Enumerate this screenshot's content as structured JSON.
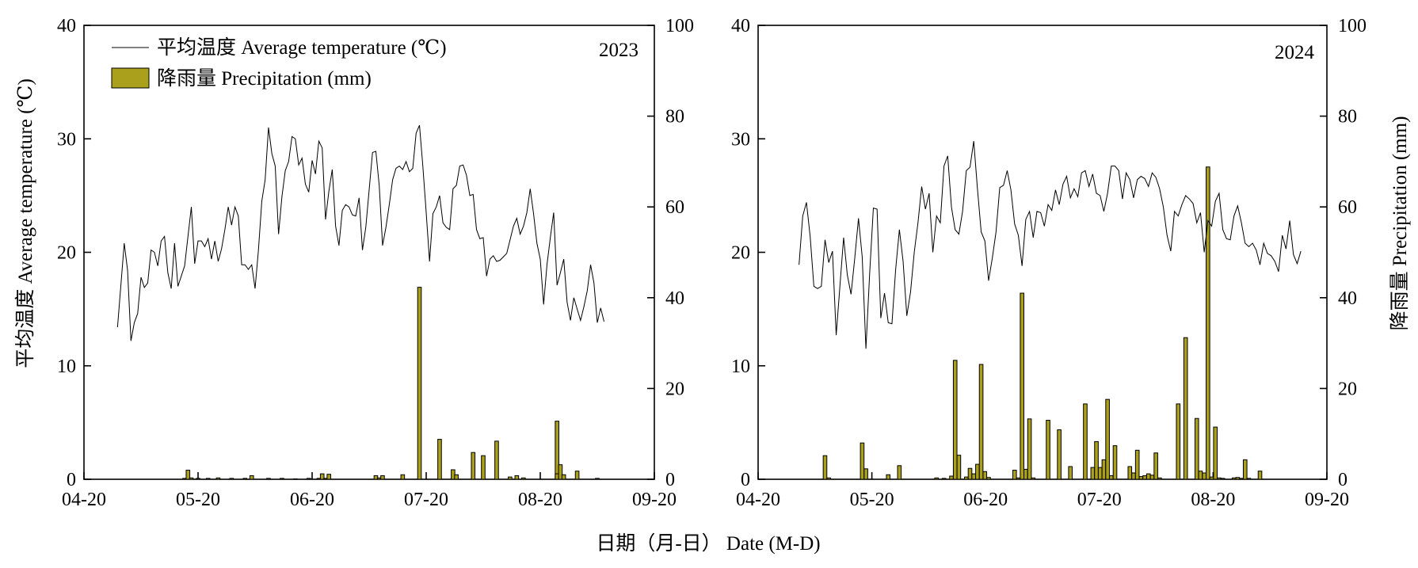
{
  "x_title": "日期（月-日） Date (M-D)",
  "y_left_title": "平均温度 Average temperature (℃)",
  "y_right_title": "降雨量 Precipitation (mm)",
  "legend": {
    "temperature": "平均温度 Average temperature (℃)",
    "precipitation": "降雨量 Precipitation  (mm)"
  },
  "colors": {
    "bar_fill": "#aaa01c",
    "line": "#000000"
  },
  "chart_data": [
    {
      "type": "line+bar",
      "annotation": "2023",
      "x_ticks": [
        "04-20",
        "05-20",
        "06-20",
        "07-20",
        "08-20",
        "09-20"
      ],
      "x_range_days": [
        0,
        170
      ],
      "y_left_ticks": [
        "0",
        "10",
        "20",
        "30",
        "40"
      ],
      "y_left_range": [
        0,
        40
      ],
      "y_right_ticks": [
        "0",
        "20",
        "40",
        "60",
        "80",
        "100"
      ],
      "y_right_range": [
        0,
        100
      ],
      "legend_position": "top-left",
      "temperature": {
        "day": [
          10,
          12,
          13,
          14,
          15,
          16,
          17,
          18,
          19,
          20,
          21,
          22,
          23,
          24,
          25,
          26,
          27,
          28,
          29,
          30,
          31,
          32,
          33,
          34,
          35,
          36,
          37,
          38,
          39,
          40,
          41,
          42,
          43,
          44,
          45,
          46,
          47,
          48,
          49,
          50,
          51,
          52,
          53,
          54,
          55,
          56,
          57,
          58,
          59,
          60,
          61,
          62,
          63,
          64,
          65,
          66,
          67,
          68,
          69,
          70,
          71,
          72,
          73,
          74,
          75,
          76,
          77,
          78,
          79,
          80,
          81,
          82,
          83,
          84,
          85,
          86,
          87,
          88,
          89,
          90,
          91,
          92,
          93,
          94,
          95,
          96,
          97,
          98,
          99,
          100,
          101,
          102,
          103,
          104,
          105,
          106,
          107,
          108,
          109,
          110,
          111,
          112,
          113,
          114,
          115,
          116,
          117,
          118,
          119,
          120,
          121,
          122,
          123,
          124,
          125,
          126,
          127,
          128,
          129,
          130,
          131,
          132,
          133,
          134,
          135,
          136,
          137,
          138,
          139,
          140,
          141,
          142,
          143,
          144,
          145,
          146,
          147,
          148,
          149,
          150,
          151,
          152,
          153,
          154,
          155,
          156,
          157,
          158
        ],
        "value": [
          13.4,
          20.8,
          18.4,
          12.2,
          13.8,
          14.6,
          17.8,
          16.9,
          17.3,
          20.2,
          20.0,
          18.8,
          21.0,
          21.4,
          18.2,
          16.8,
          20.8,
          17.0,
          17.9,
          18.8,
          21.4,
          24.0,
          19.0,
          21.0,
          21.0,
          20.5,
          21.2,
          19.4,
          21.0,
          19.2,
          20.3,
          22.0,
          24.0,
          22.4,
          24.0,
          23.2,
          18.9,
          18.9,
          18.5,
          18.9,
          16.8,
          20.2,
          24.5,
          26.4,
          31.0,
          28.7,
          27.6,
          21.6,
          24.9,
          27.2,
          28.0,
          30.2,
          30.0,
          27.7,
          28.3,
          26.0,
          25.3,
          28.1,
          26.9,
          29.8,
          29.2,
          22.9,
          25.4,
          27.3,
          22.3,
          20.6,
          23.7,
          24.2,
          24.0,
          23.3,
          23.2,
          24.8,
          20.2,
          22.2,
          25.5,
          28.8,
          28.9,
          25.9,
          20.6,
          22.2,
          24.2,
          26.4,
          27.4,
          27.6,
          27.3,
          28.0,
          27.1,
          27.4,
          30.5,
          31.2,
          27.6,
          23.5,
          19.2,
          23.4,
          24.0,
          25.0,
          22.6,
          22.2,
          22.0,
          25.6,
          25.9,
          27.6,
          27.7,
          26.8,
          25.0,
          25.1,
          22.0,
          21.2,
          21.3,
          17.9,
          19.4,
          19.7,
          19.2,
          19.3,
          19.6,
          19.9,
          21.1,
          22.3,
          23.0,
          21.6,
          22.3,
          23.5,
          25.6,
          23.4,
          20.8,
          19.4,
          15.4,
          18.9,
          21.3,
          23.5,
          17.1,
          18.2,
          19.4,
          15.6,
          14.0,
          16.0,
          15.0,
          14.0,
          15.2,
          16.6,
          18.9,
          17.3,
          13.8,
          15.1,
          13.9
        ]
      },
      "precipitation": {
        "day": [
          30,
          31,
          32,
          34,
          37,
          40,
          44,
          48,
          50,
          55,
          59,
          63,
          67,
          70,
          71,
          72,
          73,
          87,
          88,
          89,
          95,
          100,
          106,
          110,
          111,
          116,
          119,
          123,
          127,
          129,
          131,
          141,
          141,
          142,
          142,
          143,
          147,
          153
        ],
        "value": [
          0.2,
          2.0,
          0.3,
          0.2,
          0.2,
          0.3,
          0.2,
          0.2,
          0.8,
          0.2,
          0.2,
          0.1,
          0.2,
          0.2,
          1.2,
          0.2,
          1.1,
          0.8,
          0.3,
          0.8,
          1.0,
          42.3,
          8.8,
          2.1,
          1.0,
          5.9,
          5.2,
          8.4,
          0.5,
          0.8,
          0.3,
          12.8,
          1.2,
          0.5,
          3.2,
          1.0,
          1.8,
          0.2
        ]
      }
    },
    {
      "type": "line+bar",
      "annotation": "2024",
      "x_ticks": [
        "04-20",
        "05-20",
        "06-20",
        "07-20",
        "08-20",
        "09-20"
      ],
      "x_range_days": [
        0,
        153
      ],
      "y_left_ticks": [
        "0",
        "10",
        "20",
        "30",
        "40"
      ],
      "y_left_range": [
        0,
        40
      ],
      "y_right_ticks": [
        "0",
        "20",
        "40",
        "60",
        "80",
        "100"
      ],
      "y_right_range": [
        0,
        100
      ],
      "temperature": {
        "day": [
          11,
          12,
          13,
          14,
          15,
          16,
          17,
          18,
          19,
          20,
          21,
          22,
          23,
          24,
          25,
          26,
          27,
          28,
          29,
          30,
          31,
          32,
          33,
          34,
          35,
          36,
          37,
          38,
          39,
          40,
          41,
          42,
          43,
          44,
          45,
          46,
          47,
          48,
          49,
          50,
          51,
          52,
          53,
          54,
          55,
          56,
          57,
          58,
          59,
          60,
          61,
          62,
          63,
          64,
          65,
          66,
          67,
          68,
          69,
          70,
          71,
          72,
          73,
          74,
          75,
          76,
          77,
          78,
          79,
          80,
          81,
          82,
          83,
          84,
          85,
          86,
          87,
          88,
          89,
          90,
          91,
          92,
          93,
          94,
          95,
          96,
          97,
          98,
          99,
          100,
          101,
          102,
          103,
          104,
          105,
          106,
          107,
          108,
          109,
          110,
          111,
          112,
          113,
          114,
          115,
          116,
          117,
          118,
          119,
          120,
          121,
          122,
          123,
          124,
          125,
          126,
          127,
          128,
          129,
          130,
          131,
          132,
          133,
          134,
          135,
          136,
          137,
          138,
          139,
          140,
          141,
          142,
          143,
          144,
          145,
          146,
          147,
          148
        ],
        "value": [
          18.9,
          23.2,
          24.4,
          21.4,
          17.0,
          16.8,
          17.0,
          21.1,
          19.1,
          20.1,
          12.7,
          17.0,
          21.3,
          18.0,
          16.3,
          19.5,
          23.0,
          19.6,
          11.5,
          18.1,
          23.9,
          23.8,
          14.2,
          16.4,
          13.8,
          13.7,
          18.5,
          22.0,
          19.2,
          14.4,
          16.5,
          20.0,
          22.6,
          25.8,
          23.8,
          25.2,
          20.0,
          23.2,
          22.6,
          27.6,
          28.5,
          24.0,
          22.0,
          21.6,
          23.6,
          27.2,
          27.5,
          29.8,
          25.6,
          21.8,
          21.0,
          17.5,
          19.5,
          21.8,
          25.7,
          25.9,
          27.2,
          25.5,
          22.5,
          21.5,
          18.8,
          22.9,
          23.6,
          21.3,
          23.6,
          23.5,
          22.3,
          24.2,
          23.7,
          25.5,
          24.2,
          26.0,
          26.7,
          24.8,
          25.6,
          24.9,
          27.0,
          27.2,
          25.8,
          26.9,
          25.2,
          25.0,
          23.6,
          25.2,
          27.6,
          27.6,
          27.2,
          24.7,
          27.0,
          26.4,
          24.8,
          26.4,
          26.7,
          26.5,
          25.8,
          27.0,
          26.6,
          25.6,
          24.0,
          21.5,
          20.1,
          23.6,
          23.2,
          24.2,
          25.0,
          24.7,
          24.3,
          22.6,
          23.5,
          20.0,
          22.8,
          22.3,
          24.5,
          25.2,
          22.0,
          21.2,
          21.1,
          23.2,
          24.1,
          22.6,
          20.8,
          20.5,
          20.8,
          20.2,
          18.9,
          20.8,
          19.9,
          19.7,
          19.2,
          18.3,
          21.5,
          20.3,
          22.8,
          19.8,
          19.0,
          20.1
        ]
      },
      "precipitation": {
        "day": [
          18,
          19,
          28,
          29,
          35,
          38,
          48,
          50,
          52,
          53,
          54,
          56,
          57,
          58,
          59,
          60,
          61,
          62,
          69,
          70,
          71,
          72,
          73,
          74,
          78,
          81,
          84,
          88,
          90,
          91,
          92,
          93,
          94,
          95,
          96,
          100,
          101,
          102,
          103,
          104,
          105,
          106,
          107,
          108,
          113,
          115,
          118,
          119,
          120,
          121,
          122,
          123,
          124,
          125,
          128,
          129,
          130,
          131,
          132,
          135
        ],
        "value": [
          5.2,
          0.3,
          8.0,
          2.3,
          1.0,
          3.0,
          0.3,
          0.2,
          0.7,
          26.2,
          5.3,
          0.5,
          2.4,
          1.2,
          3.3,
          25.3,
          1.7,
          0.4,
          2.0,
          0.3,
          41.0,
          2.2,
          13.3,
          0.3,
          13.0,
          10.9,
          2.8,
          16.6,
          2.6,
          8.3,
          2.6,
          4.3,
          17.6,
          0.8,
          7.4,
          2.8,
          1.4,
          6.4,
          0.6,
          0.8,
          1.2,
          0.9,
          5.8,
          0.3,
          16.6,
          31.2,
          13.4,
          1.8,
          1.4,
          68.8,
          0.5,
          11.5,
          0.3,
          0.2,
          0.3,
          0.4,
          0.2,
          4.3,
          0.2,
          1.8
        ]
      }
    }
  ]
}
